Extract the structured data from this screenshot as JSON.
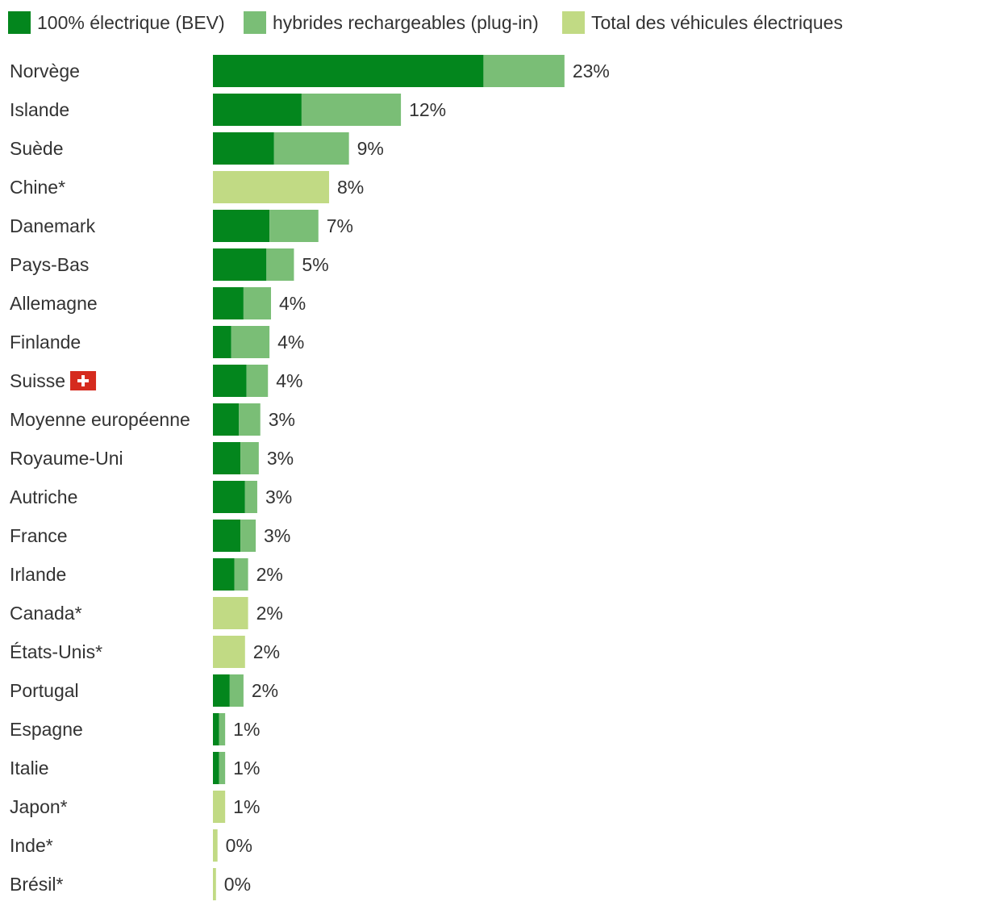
{
  "chart_data": {
    "type": "bar",
    "orientation": "horizontal",
    "stacked": true,
    "title": "",
    "xlabel": "",
    "ylabel": "",
    "grid": false,
    "legend_position": "top-left",
    "xlim": [
      0,
      23
    ],
    "colors": {
      "bev": "#03861d",
      "phev": "#7abe76",
      "total": "#c1da84",
      "flag": "#d52b1e"
    },
    "legend": [
      {
        "key": "bev",
        "label": "100% électrique (BEV)"
      },
      {
        "key": "phev",
        "label": "hybrides rechargeables (plug-in)"
      },
      {
        "key": "total",
        "label": "Total des véhicules électriques"
      }
    ],
    "categories": [
      "Norvège",
      "Islande",
      "Suède",
      "Chine*",
      "Danemark",
      "Pays-Bas",
      "Allemagne",
      "Finlande",
      "Suisse",
      "Moyenne européenne",
      "Royaume-Uni",
      "Autriche",
      "France",
      "Irlande",
      "Canada*",
      "États-Unis*",
      "Portugal",
      "Espagne",
      "Italie",
      "Japon*",
      "Inde*",
      "Brésil*"
    ],
    "flag_icons": {
      "Suisse": "swiss-flag-icon"
    },
    "series": [
      {
        "name": "100% électrique (BEV)",
        "key": "bev",
        "values": [
          17.7,
          5.8,
          4.0,
          null,
          3.7,
          3.5,
          2.0,
          1.2,
          2.2,
          1.7,
          1.8,
          2.1,
          1.8,
          1.4,
          null,
          null,
          1.1,
          0.4,
          0.4,
          null,
          null,
          null
        ]
      },
      {
        "name": "hybrides rechargeables (plug-in)",
        "key": "phev",
        "values": [
          5.3,
          6.5,
          4.9,
          null,
          3.2,
          1.8,
          1.8,
          2.5,
          1.4,
          1.4,
          1.2,
          0.8,
          1.0,
          0.9,
          null,
          null,
          0.9,
          0.4,
          0.4,
          null,
          null,
          null
        ]
      },
      {
        "name": "Total des véhicules électriques",
        "key": "total",
        "values": [
          null,
          null,
          null,
          7.6,
          null,
          null,
          null,
          null,
          null,
          null,
          null,
          null,
          null,
          null,
          2.3,
          2.1,
          null,
          null,
          null,
          0.8,
          0.3,
          0.2
        ]
      }
    ],
    "value_labels": [
      "23%",
      "12%",
      "9%",
      "8%",
      "7%",
      "5%",
      "4%",
      "4%",
      "4%",
      "3%",
      "3%",
      "3%",
      "3%",
      "2%",
      "2%",
      "2%",
      "2%",
      "1%",
      "1%",
      "1%",
      "0%",
      "0%"
    ]
  }
}
